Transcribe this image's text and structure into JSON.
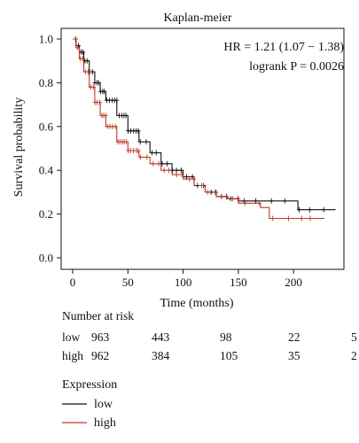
{
  "chart_data": {
    "type": "line",
    "subtype": "kaplan-meier-survival",
    "title": "Kaplan-meier",
    "xlabel": "Time (months)",
    "ylabel": "Survival probability",
    "xlim": [
      0,
      240
    ],
    "ylim": [
      0,
      1.0
    ],
    "xticks": [
      0,
      50,
      100,
      150,
      200
    ],
    "yticks": [
      0.0,
      0.2,
      0.4,
      0.6,
      0.8,
      1.0
    ],
    "xtick_labels": [
      "0",
      "50",
      "100",
      "150",
      "200"
    ],
    "ytick_labels": [
      "0.0",
      "0.2",
      "0.4",
      "0.6",
      "0.8",
      "1.0"
    ],
    "grid": false,
    "stats": {
      "hr": "HR = 1.21 (1.07 − 1.38)",
      "logrank": "logrank P = 0.0026"
    },
    "series": [
      {
        "name": "low",
        "color": "#111111",
        "x": [
          0,
          3,
          6,
          10,
          15,
          20,
          25,
          30,
          40,
          50,
          60,
          70,
          80,
          90,
          100,
          110,
          120,
          130,
          140,
          150,
          160,
          170,
          180,
          190,
          200,
          204,
          210,
          220,
          230,
          238
        ],
        "y": [
          1.0,
          0.97,
          0.94,
          0.9,
          0.85,
          0.8,
          0.76,
          0.72,
          0.65,
          0.58,
          0.53,
          0.48,
          0.43,
          0.4,
          0.37,
          0.33,
          0.3,
          0.28,
          0.27,
          0.26,
          0.26,
          0.26,
          0.26,
          0.26,
          0.26,
          0.22,
          0.22,
          0.22,
          0.22,
          0.22
        ]
      },
      {
        "name": "high",
        "color": "#c0392b",
        "x": [
          0,
          3,
          6,
          10,
          15,
          20,
          25,
          30,
          40,
          50,
          60,
          70,
          80,
          90,
          100,
          110,
          120,
          130,
          140,
          150,
          160,
          170,
          175,
          178,
          190,
          200,
          210,
          220,
          228
        ],
        "y": [
          1.0,
          0.96,
          0.91,
          0.85,
          0.78,
          0.71,
          0.65,
          0.6,
          0.53,
          0.49,
          0.46,
          0.43,
          0.4,
          0.38,
          0.36,
          0.33,
          0.3,
          0.28,
          0.27,
          0.25,
          0.25,
          0.23,
          0.23,
          0.18,
          0.18,
          0.18,
          0.18,
          0.18,
          0.18
        ]
      }
    ]
  },
  "risk_table": {
    "title": "Number at risk",
    "rows": [
      {
        "label": "low",
        "values": [
          "963",
          "443",
          "98",
          "22",
          "5"
        ]
      },
      {
        "label": "high",
        "values": [
          "962",
          "384",
          "105",
          "35",
          "2"
        ]
      }
    ]
  },
  "legend": {
    "title": "Expression",
    "items": [
      {
        "label": "low",
        "color": "#111111"
      },
      {
        "label": "high",
        "color": "#c0392b"
      }
    ]
  }
}
